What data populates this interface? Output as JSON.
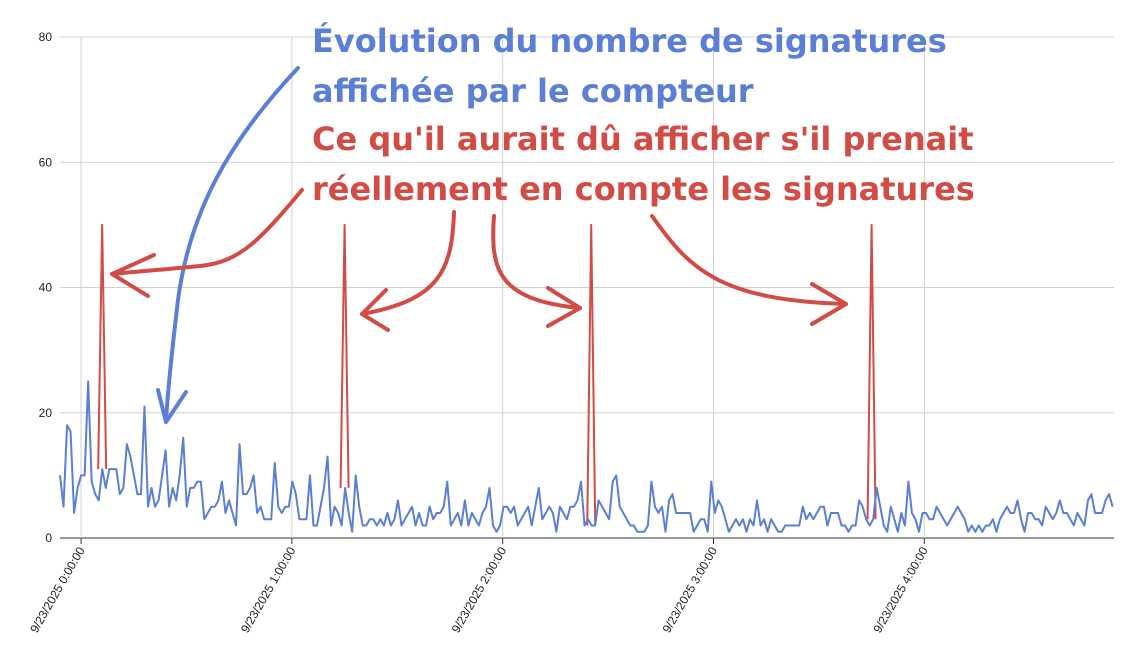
{
  "chart_data": {
    "type": "line",
    "title": "",
    "xlabel": "",
    "ylabel": "",
    "ylim": [
      0,
      80
    ],
    "y_ticks": [
      0,
      20,
      40,
      60,
      80
    ],
    "x_ticks": [
      {
        "label": "9/23/2025 0:00:00",
        "hours": 0
      },
      {
        "label": "9/23/2025 1:00:00",
        "hours": 1
      },
      {
        "label": "9/23/2025 2:00:00",
        "hours": 2
      },
      {
        "label": "9/23/2025 3:00:00",
        "hours": 3
      },
      {
        "label": "9/23/2025 4:00:00",
        "hours": 4
      }
    ],
    "x_range_hours": [
      -0.1,
      4.9
    ],
    "grid": true,
    "series": [
      {
        "key": "counter",
        "color": "#5b7fd6",
        "x_start_hours": -0.1,
        "x_step_hours": 0.0167,
        "values": [
          10,
          5,
          18,
          17,
          4,
          8,
          10,
          10,
          25,
          9,
          7,
          6,
          11,
          8,
          11,
          11,
          11,
          7,
          8,
          15,
          13,
          10,
          7,
          7,
          21,
          5,
          8,
          5,
          6,
          10,
          14,
          5,
          8,
          6,
          10,
          16,
          5,
          8,
          8,
          9,
          9,
          3,
          4,
          5,
          5,
          6,
          9,
          4,
          6,
          4,
          2,
          15,
          7,
          7,
          8,
          10,
          4,
          5,
          3,
          3,
          3,
          12,
          5,
          4,
          5,
          5,
          9,
          7,
          3,
          3,
          3,
          10,
          2,
          2,
          5,
          8,
          13,
          2,
          5,
          4,
          2,
          8,
          4,
          1,
          10,
          5,
          2,
          2,
          3,
          3,
          2,
          3,
          2,
          4,
          2,
          3,
          6,
          2,
          3,
          4,
          5,
          2,
          4,
          2,
          2,
          5,
          3,
          4,
          4,
          5,
          9,
          2,
          3,
          4,
          2,
          6,
          2,
          4,
          3,
          2,
          4,
          5,
          8,
          2,
          1,
          2,
          5,
          5,
          4,
          5,
          2,
          3,
          4,
          5,
          2,
          5,
          8,
          3,
          4,
          5,
          4,
          1,
          5,
          4,
          3,
          5,
          5,
          6,
          9,
          2,
          3,
          2,
          2,
          6,
          5,
          4,
          3,
          9,
          10,
          5,
          4,
          3,
          2,
          2,
          1,
          1,
          1,
          2,
          9,
          5,
          4,
          5,
          1,
          6,
          7,
          4,
          4,
          4,
          4,
          4,
          1,
          2,
          3,
          3,
          1,
          9,
          4,
          6,
          5,
          3,
          1,
          2,
          3,
          2,
          3,
          1,
          3,
          2,
          6,
          2,
          3,
          1,
          3,
          2,
          1,
          1,
          2,
          2,
          2,
          2,
          2,
          5,
          3,
          4,
          3,
          4,
          5,
          5,
          2,
          4,
          4,
          4,
          2,
          2,
          1,
          2,
          2,
          6,
          5,
          3,
          2,
          3,
          8,
          5,
          2,
          1,
          5,
          3,
          1,
          4,
          2,
          9,
          4,
          3,
          1,
          4,
          4,
          3,
          3,
          5,
          4,
          3,
          2,
          3,
          4,
          5,
          4,
          3,
          1,
          2,
          1,
          2,
          1,
          2,
          2,
          3,
          1,
          3,
          4,
          5,
          4,
          4,
          6,
          3,
          1,
          4,
          4,
          3,
          3,
          2,
          5,
          4,
          3,
          4,
          6,
          4,
          4,
          3,
          2,
          4,
          3,
          2,
          6,
          7,
          4,
          4,
          4,
          6,
          7,
          5,
          2,
          2,
          1,
          3,
          5,
          5,
          2,
          4,
          1,
          4,
          6,
          5,
          3,
          4,
          6,
          2,
          1,
          3,
          2,
          4,
          4,
          5,
          2,
          2,
          1,
          1,
          2,
          3,
          4,
          6,
          4,
          8,
          4,
          3,
          5,
          2,
          3,
          4,
          3,
          1,
          3,
          5,
          6,
          2,
          1,
          3,
          7,
          2,
          5,
          2
        ]
      },
      {
        "key": "expected",
        "color": "#d24b45",
        "spikes": [
          {
            "hours": 0.1,
            "value": 50
          },
          {
            "hours": 1.25,
            "value": 50
          },
          {
            "hours": 2.42,
            "value": 50
          },
          {
            "hours": 3.75,
            "value": 50
          }
        ]
      }
    ],
    "annotations": {
      "blue_line1": "Évolution du nombre de signatures",
      "blue_line2": "affichée par le compteur",
      "red_line1": "Ce qu'il aurait dû afficher s'il prenait",
      "red_line2": "réellement en compte les signatures"
    }
  }
}
